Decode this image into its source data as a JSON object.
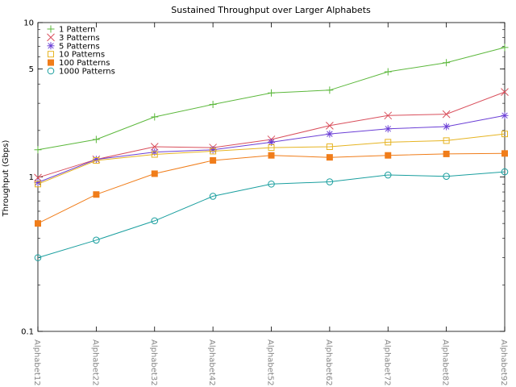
{
  "chart_data": {
    "type": "line",
    "title": "Sustained Throughput over Larger Alphabets",
    "ylabel": "Throughput (Gbps)",
    "xlabel": "",
    "y_scale": "log",
    "ylim": [
      0.1,
      10
    ],
    "y_ticks": [
      {
        "value": 10,
        "label": "10"
      },
      {
        "value": 5,
        "label": "5"
      },
      {
        "value": 1,
        "label": "1"
      },
      {
        "value": 0.1,
        "label": "0.1"
      }
    ],
    "categories": [
      "Alphabet12",
      "Alphabet22",
      "Alphabet32",
      "Alphabet42",
      "Alphabet52",
      "Alphabet62",
      "Alphabet72",
      "Alphabet82",
      "Alphabet92"
    ],
    "legend_position": "top-left",
    "grid": false,
    "series": [
      {
        "name": "1 Pattern",
        "color": "#5cb83c",
        "marker": "plus",
        "values": [
          1.5,
          1.75,
          2.45,
          2.95,
          3.5,
          3.65,
          4.8,
          5.5,
          6.9
        ]
      },
      {
        "name": "3 Patterns",
        "color": "#d94f5c",
        "marker": "cross",
        "values": [
          0.99,
          1.3,
          1.57,
          1.55,
          1.75,
          2.15,
          2.5,
          2.55,
          3.55
        ]
      },
      {
        "name": "5 Patterns",
        "color": "#6b3fd6",
        "marker": "star",
        "values": [
          0.92,
          1.3,
          1.45,
          1.5,
          1.68,
          1.9,
          2.05,
          2.12,
          2.5
        ]
      },
      {
        "name": "10 Patterns",
        "color": "#e6b422",
        "marker": "open-square",
        "values": [
          0.9,
          1.28,
          1.4,
          1.47,
          1.55,
          1.57,
          1.68,
          1.72,
          1.9
        ]
      },
      {
        "name": "100 Patterns",
        "color": "#f07d1a",
        "marker": "filled-square",
        "values": [
          0.5,
          0.77,
          1.05,
          1.28,
          1.38,
          1.34,
          1.38,
          1.41,
          1.42
        ]
      },
      {
        "name": "1000 Patterns",
        "color": "#1a9f9f",
        "marker": "open-circle",
        "values": [
          0.3,
          0.39,
          0.52,
          0.75,
          0.9,
          0.93,
          1.03,
          1.01,
          1.08
        ]
      }
    ]
  }
}
